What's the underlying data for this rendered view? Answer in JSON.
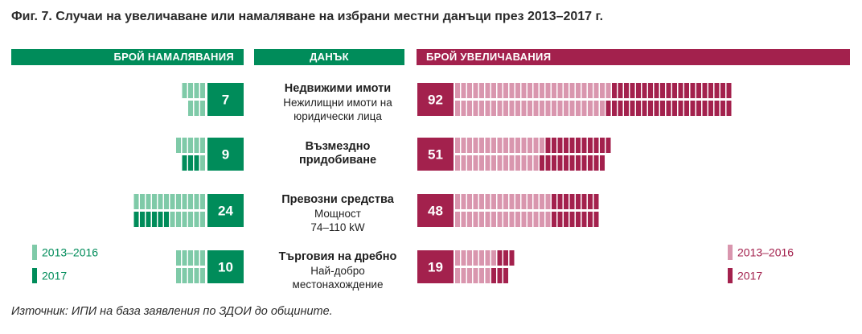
{
  "title": "Фиг. 7. Случаи на увеличаване или намаляване на избрани местни данъци през 2013–2017 г.",
  "headers": {
    "decrease": "БРОЙ НАМАЛЯВАНИЯ",
    "tax": "ДАНЪК",
    "increase": "БРОЙ УВЕЛИЧАВАНИЯ"
  },
  "taxes": [
    {
      "name": "Недвижими имоти",
      "sub1": "Нежилищни имоти на",
      "sub2": "юридически лица"
    },
    {
      "name": "Възмездно",
      "sub1": "придобиване",
      "sub2": ""
    },
    {
      "name": "Превозни средства",
      "sub1": "Мощност",
      "sub2": "74–110 kW"
    },
    {
      "name": "Търговия на дребно",
      "sub1": "Най-добро",
      "sub2": "местонахождение"
    }
  ],
  "legend_left": {
    "period_label": "2013–2016",
    "year_label": "2017"
  },
  "legend_right": {
    "period_label": "2013–2016",
    "year_label": "2017"
  },
  "source": "Източник: ИПИ на база заявления по ЗДОИ до общините.",
  "colors": {
    "green_dark": "#008c5a",
    "green_light": "#7fcaa8",
    "red_dark": "#a3214d",
    "red_light": "#d996ae"
  },
  "chart_data": {
    "type": "bar",
    "categories": [
      "Недвижими имоти",
      "Възмездно придобиване",
      "Превозни средства",
      "Търговия на дребно"
    ],
    "decreases": {
      "totals": [
        7,
        9,
        24,
        10
      ],
      "series": [
        {
          "name": "2013–2016",
          "values": [
            7,
            6,
            18,
            10
          ]
        },
        {
          "name": "2017",
          "values": [
            0,
            3,
            6,
            0
          ]
        }
      ]
    },
    "increases": {
      "totals": [
        92,
        51,
        48,
        19
      ],
      "series": [
        {
          "name": "2013–2016",
          "values": [
            51,
            29,
            32,
            13
          ]
        },
        {
          "name": "2017",
          "values": [
            41,
            22,
            16,
            6
          ]
        }
      ]
    }
  }
}
